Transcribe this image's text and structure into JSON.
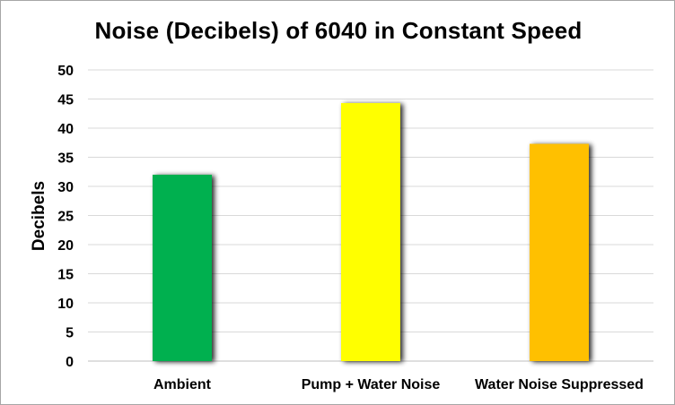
{
  "chart_data": {
    "type": "bar",
    "title": "Noise (Decibels) of 6040 in Constant Speed",
    "xlabel": "",
    "ylabel": "Decibels",
    "categories": [
      "Ambient",
      "Pump + Water Noise",
      "Water Noise Suppressed"
    ],
    "values": [
      32,
      44.3,
      37.3
    ],
    "colors": [
      "#00b050",
      "#ffff00",
      "#ffc000"
    ],
    "ylim": [
      0,
      50
    ],
    "yticks": [
      0,
      5,
      10,
      15,
      20,
      25,
      30,
      35,
      40,
      45,
      50
    ],
    "grid": true,
    "legend": "none"
  }
}
